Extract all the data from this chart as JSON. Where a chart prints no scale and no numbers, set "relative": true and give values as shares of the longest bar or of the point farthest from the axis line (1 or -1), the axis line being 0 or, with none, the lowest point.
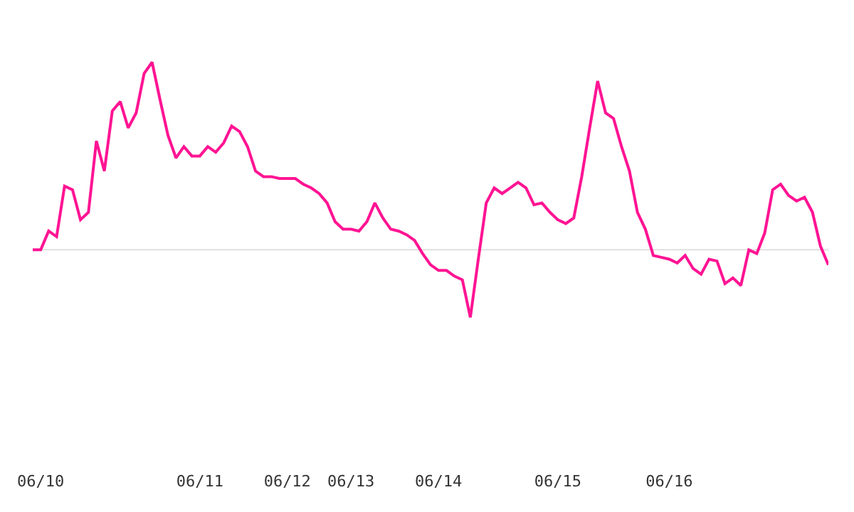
{
  "chart_data": {
    "type": "line",
    "relative": true,
    "categories": [
      null,
      "06/10",
      null,
      null,
      null,
      null,
      null,
      null,
      null,
      null,
      null,
      null,
      null,
      null,
      null,
      null,
      null,
      null,
      null,
      null,
      null,
      "06/11",
      null,
      null,
      null,
      null,
      null,
      null,
      null,
      null,
      null,
      null,
      "06/12",
      null,
      null,
      null,
      null,
      null,
      null,
      null,
      "06/13",
      null,
      null,
      null,
      null,
      null,
      null,
      null,
      null,
      null,
      null,
      "06/14",
      null,
      null,
      null,
      null,
      null,
      null,
      null,
      null,
      null,
      null,
      null,
      null,
      null,
      null,
      "06/15",
      null,
      null,
      null,
      null,
      null,
      null,
      null,
      null,
      null,
      null,
      null,
      null,
      null,
      "06/16",
      null,
      null,
      null,
      null,
      null,
      null,
      null,
      null,
      null,
      null,
      null,
      null,
      null,
      null,
      null,
      null,
      null,
      null,
      null,
      null
    ],
    "series": [
      {
        "color": "#ff1493",
        "values": [
          0,
          0,
          0.1,
          0.07,
          0.34,
          0.32,
          0.16,
          0.2,
          0.58,
          0.42,
          0.74,
          0.79,
          0.65,
          0.73,
          0.94,
          1,
          0.8,
          0.61,
          0.49,
          0.55,
          0.5,
          0.5,
          0.55,
          0.52,
          0.57,
          0.66,
          0.63,
          0.55,
          0.42,
          0.39,
          0.39,
          0.38,
          0.38,
          0.38,
          0.35,
          0.33,
          0.3,
          0.25,
          0.15,
          0.11,
          0.11,
          0.1,
          0.15,
          0.25,
          0.17,
          0.11,
          0.1,
          0.08,
          0.05,
          -0.02,
          -0.08,
          -0.11,
          -0.11,
          -0.14,
          -0.16,
          -0.36,
          -0.05,
          0.25,
          0.33,
          0.3,
          0.33,
          0.36,
          0.33,
          0.24,
          0.25,
          0.2,
          0.16,
          0.14,
          0.17,
          0.39,
          0.65,
          0.9,
          0.73,
          0.7,
          0.55,
          0.42,
          0.2,
          0.11,
          -0.03,
          -0.04,
          -0.05,
          -0.07,
          -0.03,
          -0.1,
          -0.13,
          -0.05,
          -0.06,
          -0.18,
          -0.15,
          -0.19,
          0,
          -0.02,
          0.09,
          0.32,
          0.35,
          0.29,
          0.26,
          0.28,
          0.2,
          0.02,
          -0.08
        ]
      }
    ],
    "ref_lines": [
      {
        "axis": "y",
        "value": 0,
        "color": "#e0e0e0"
      }
    ],
    "grid": false,
    "marker": "none",
    "line_style": "solid",
    "tick_labels": "x"
  }
}
